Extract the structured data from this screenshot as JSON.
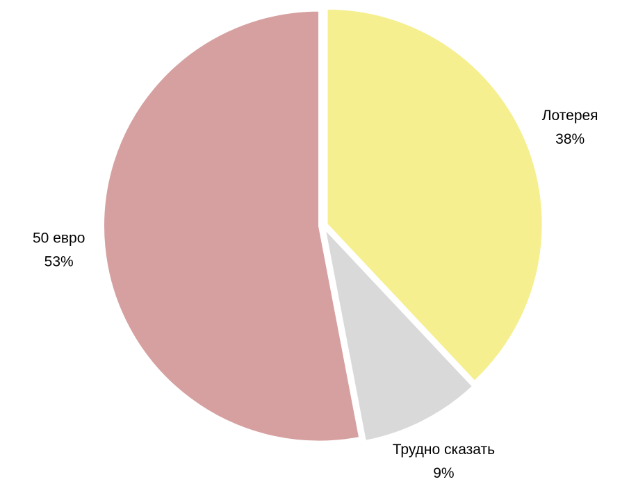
{
  "chart_data": {
    "type": "pie",
    "categories": [
      "Лотерея",
      "Трудно сказать",
      "50 евро"
    ],
    "values": [
      38,
      9,
      53
    ],
    "value_labels": [
      "38%",
      "9%",
      "53%"
    ],
    "colors": [
      "#f5ef8f",
      "#d9d9d9",
      "#d6a0a0"
    ]
  }
}
